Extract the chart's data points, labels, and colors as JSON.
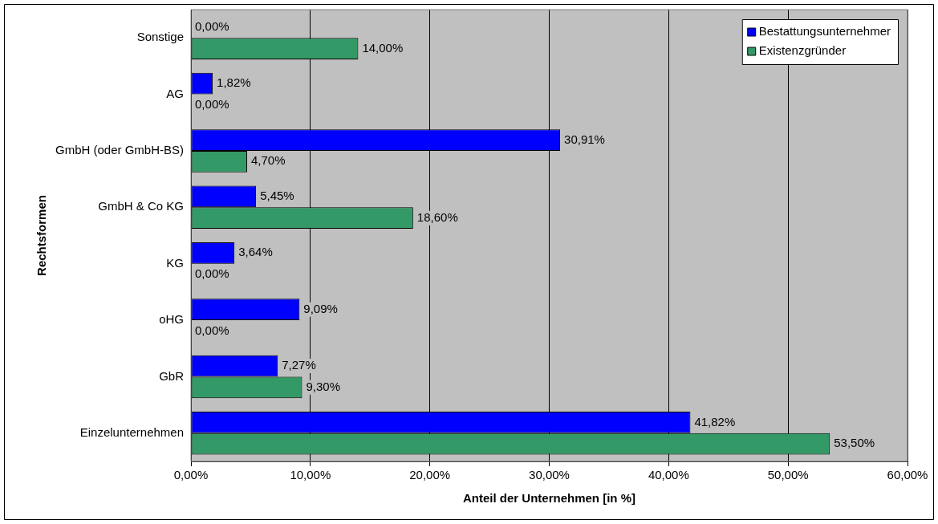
{
  "chart_data": {
    "type": "bar",
    "orientation": "horizontal",
    "xlabel": "Anteil der Unternehmen [in %]",
    "ylabel": "Rechtsformen",
    "categories": [
      "Sonstige",
      "AG",
      "GmbH (oder GmbH-BS)",
      "GmbH & Co KG",
      "KG",
      "oHG",
      "GbR",
      "Einzelunternehmen"
    ],
    "series": [
      {
        "name": "Bestattungsunternehmer",
        "color": "#0000ff",
        "values": [
          0,
          1.82,
          30.91,
          5.45,
          3.64,
          9.09,
          7.27,
          41.82
        ],
        "value_labels": [
          "0,00%",
          "1,82%",
          "30,91%",
          "5,45%",
          "3,64%",
          "9,09%",
          "7,27%",
          "41,82%"
        ]
      },
      {
        "name": "Existenzgründer",
        "color": "#339966",
        "values": [
          14,
          0,
          4.7,
          18.6,
          0,
          0,
          9.3,
          53.5
        ],
        "value_labels": [
          "14,00%",
          "0,00%",
          "4,70%",
          "18,60%",
          "0,00%",
          "0,00%",
          "9,30%",
          "53,50%"
        ]
      }
    ],
    "xlim": [
      0,
      60
    ],
    "xticks": [
      {
        "value": 0,
        "label": "0,00%"
      },
      {
        "value": 10,
        "label": "10,00%"
      },
      {
        "value": 20,
        "label": "20,00%"
      },
      {
        "value": 30,
        "label": "30,00%"
      },
      {
        "value": 40,
        "label": "40,00%"
      },
      {
        "value": 50,
        "label": "50,00%"
      },
      {
        "value": 60,
        "label": "60,00%"
      }
    ],
    "grid": "x",
    "legend": "top right"
  }
}
